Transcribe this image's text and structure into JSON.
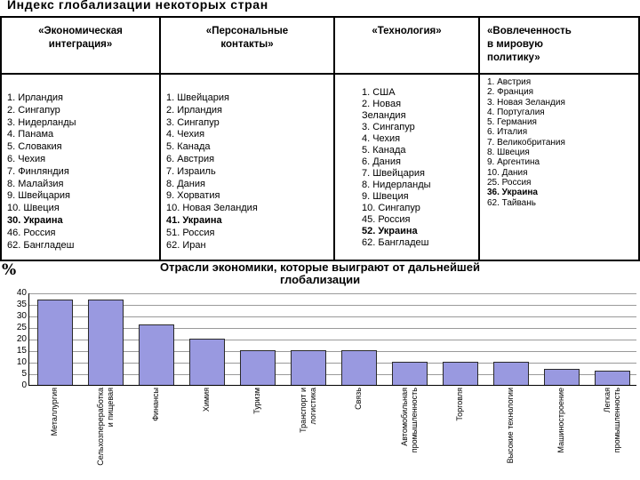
{
  "slide": {
    "title": "Индекс глобализации некоторых стран"
  },
  "table": {
    "columns": [
      {
        "header": "«Экономическая\nинтеграция»",
        "items": [
          {
            "text": "1. Ирландия",
            "bold": false
          },
          {
            "text": "2. Сингапур",
            "bold": false
          },
          {
            "text": "3. Нидерланды",
            "bold": false
          },
          {
            "text": "4. Панама",
            "bold": false
          },
          {
            "text": "5. Словакия",
            "bold": false
          },
          {
            "text": "6. Чехия",
            "bold": false
          },
          {
            "text": "7. Финляндия",
            "bold": false
          },
          {
            "text": "8. Малайзия",
            "bold": false
          },
          {
            "text": "9. Швейцария",
            "bold": false
          },
          {
            "text": "10. Швеция",
            "bold": false
          },
          {
            "text": "30. Украина",
            "bold": true
          },
          {
            "text": "46. Россия",
            "bold": false
          },
          {
            "text": "62. Бангладеш",
            "bold": false
          }
        ]
      },
      {
        "header": "«Персональные\nконтакты»",
        "items": [
          {
            "text": "1. Швейцария",
            "bold": false
          },
          {
            "text": "2. Ирландия",
            "bold": false
          },
          {
            "text": "3. Сингапур",
            "bold": false
          },
          {
            "text": "4. Чехия",
            "bold": false
          },
          {
            "text": "5. Канада",
            "bold": false
          },
          {
            "text": "6. Австрия",
            "bold": false
          },
          {
            "text": "7. Израиль",
            "bold": false
          },
          {
            "text": "8. Дания",
            "bold": false
          },
          {
            "text": "9. Хорватия",
            "bold": false
          },
          {
            "text": "10. Новая Зеландия",
            "bold": false
          },
          {
            "text": "41. Украина",
            "bold": true
          },
          {
            "text": "51. Россия",
            "bold": false
          },
          {
            "text": "62. Иран",
            "bold": false
          }
        ]
      },
      {
        "header": "«Технология»",
        "items": [
          {
            "text": "1. США",
            "bold": false
          },
          {
            "text": "2. Новая\nЗеландия",
            "bold": false
          },
          {
            "text": "3. Сингапур",
            "bold": false
          },
          {
            "text": "4. Чехия",
            "bold": false
          },
          {
            "text": "5. Канада",
            "bold": false
          },
          {
            "text": "6. Дания",
            "bold": false
          },
          {
            "text": "7. Швейцария",
            "bold": false
          },
          {
            "text": "8. Нидерланды",
            "bold": false
          },
          {
            "text": "9. Швеция",
            "bold": false
          },
          {
            "text": "10. Сингапур",
            "bold": false
          },
          {
            "text": "45. Россия",
            "bold": false
          },
          {
            "text": "52. Украина",
            "bold": true
          },
          {
            "text": "62. Бангладеш",
            "bold": false
          }
        ]
      },
      {
        "header": "«Вовлеченность\nв мировую\nполитику»",
        "items": [
          {
            "text": "1. Австрия",
            "bold": false
          },
          {
            "text": "2. Франция",
            "bold": false
          },
          {
            "text": "3. Новая Зеландия",
            "bold": false
          },
          {
            "text": "4. Португалия",
            "bold": false
          },
          {
            "text": "5. Германия",
            "bold": false
          },
          {
            "text": "6. Италия",
            "bold": false
          },
          {
            "text": "7. Великобритания",
            "bold": false
          },
          {
            "text": "8. Швеция",
            "bold": false
          },
          {
            "text": "9. Аргентина",
            "bold": false
          },
          {
            "text": "10. Дания",
            "bold": false
          },
          {
            "text": "25. Россия",
            "bold": false
          },
          {
            "text": "36. Украина",
            "bold": true
          },
          {
            "text": "62. Тайвань",
            "bold": false
          }
        ]
      }
    ]
  },
  "chart": {
    "unit_label": "%",
    "title_display": "Отрасли  экономики, которые выиграют от дальнейшей\nглобализации"
  },
  "chart_data": {
    "type": "bar",
    "title": "Отрасли экономики, которые выиграют от дальнейшей глобализации",
    "categories": [
      "Металлургия",
      "Сельхозпереработка и пищевая",
      "Финансы",
      "Химия",
      "Туризм",
      "Транспорт и логистика",
      "Связь",
      "Автомобильная промышленность",
      "Торговля",
      "Высокие технологии",
      "Машиностроение",
      "Легкая промышленность"
    ],
    "display_labels": [
      "Металлургия",
      "Сельхозпереработка\nи пищевая",
      "Финансы",
      "Химия",
      "Туризм",
      "Транспорт и\nлогистика",
      "Связь",
      "Автомобильная\nпромышленность",
      "Торговля",
      "Высокие технологии",
      "Машиностроение",
      "Легкая\nпромышленность"
    ],
    "values": [
      37,
      37,
      26,
      20,
      15,
      15,
      15,
      10,
      10,
      10,
      7,
      6
    ],
    "xlabel": "",
    "ylabel": "%",
    "ylim": [
      0,
      40
    ],
    "yticks": [
      0,
      5,
      10,
      15,
      20,
      25,
      30,
      35,
      40
    ],
    "grid": true,
    "legend": false,
    "bar_color": "#9999E0",
    "bar_border_color": "#2a2a2a"
  }
}
